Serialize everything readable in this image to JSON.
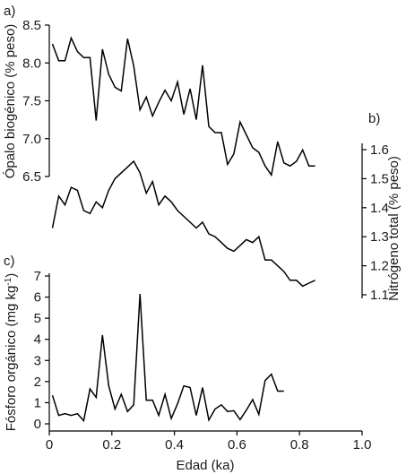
{
  "chart_data": [
    {
      "type": "line",
      "panel_label": "a)",
      "ylabel": "Ópalo biogénico (% peso)",
      "y_axis_side": "left",
      "ylim": [
        6.2,
        8.5
      ],
      "yticks": [
        "6.5",
        "7.0",
        "7.5",
        "8.0",
        "8.5"
      ],
      "ytick_values": [
        6.5,
        7.0,
        7.5,
        8.0,
        8.5
      ],
      "series": [
        {
          "x": [
            0.01,
            0.03,
            0.05,
            0.07,
            0.09,
            0.11,
            0.13,
            0.15,
            0.17,
            0.19,
            0.21,
            0.23,
            0.25,
            0.27,
            0.29,
            0.31,
            0.33,
            0.35,
            0.37,
            0.39,
            0.41,
            0.43,
            0.45,
            0.47,
            0.49,
            0.51,
            0.53,
            0.55,
            0.57,
            0.59,
            0.61,
            0.63,
            0.65,
            0.67,
            0.69,
            0.71,
            0.73,
            0.75,
            0.77,
            0.79,
            0.81,
            0.83,
            0.85
          ],
          "y": [
            8.25,
            8.03,
            8.03,
            8.33,
            8.15,
            8.07,
            8.07,
            7.24,
            8.18,
            7.85,
            7.68,
            7.63,
            8.32,
            7.96,
            7.38,
            7.55,
            7.3,
            7.48,
            7.64,
            7.5,
            7.75,
            7.32,
            7.66,
            7.25,
            7.97,
            7.16,
            7.08,
            7.08,
            6.66,
            6.8,
            7.22,
            7.05,
            6.88,
            6.82,
            6.64,
            6.52,
            6.96,
            6.68,
            6.64,
            6.7,
            6.85,
            6.64,
            6.64
          ]
        }
      ]
    },
    {
      "type": "line",
      "panel_label": "b)",
      "ylabel": "Nitrógeno total (% peso)",
      "y_axis_side": "right",
      "ylim": [
        1.07,
        1.67
      ],
      "yticks": [
        "1.1",
        "1.2",
        "1.3",
        "1.4",
        "1.5",
        "1.6"
      ],
      "ytick_values": [
        1.1,
        1.2,
        1.3,
        1.4,
        1.5,
        1.6
      ],
      "series": [
        {
          "x": [
            0.01,
            0.03,
            0.05,
            0.07,
            0.09,
            0.11,
            0.13,
            0.15,
            0.17,
            0.19,
            0.21,
            0.23,
            0.25,
            0.27,
            0.29,
            0.31,
            0.33,
            0.35,
            0.37,
            0.39,
            0.41,
            0.43,
            0.45,
            0.47,
            0.49,
            0.51,
            0.53,
            0.55,
            0.57,
            0.59,
            0.61,
            0.63,
            0.65,
            0.67,
            0.69,
            0.71,
            0.73,
            0.75,
            0.77,
            0.79,
            0.81,
            0.83,
            0.85
          ],
          "y": [
            1.33,
            1.44,
            1.41,
            1.47,
            1.46,
            1.39,
            1.38,
            1.42,
            1.4,
            1.46,
            1.5,
            1.52,
            1.54,
            1.56,
            1.52,
            1.45,
            1.49,
            1.41,
            1.44,
            1.42,
            1.39,
            1.37,
            1.35,
            1.33,
            1.35,
            1.31,
            1.3,
            1.28,
            1.26,
            1.25,
            1.27,
            1.29,
            1.28,
            1.3,
            1.22,
            1.22,
            1.2,
            1.18,
            1.15,
            1.15,
            1.13,
            1.14,
            1.15
          ]
        }
      ]
    },
    {
      "type": "line",
      "panel_label": "c)",
      "ylabel": "Fósforo orgánico (mg kg⁻¹)",
      "y_axis_side": "left",
      "ylim": [
        0,
        7.2
      ],
      "yticks": [
        "0",
        "1",
        "2",
        "3",
        "4",
        "5",
        "6",
        "7"
      ],
      "ytick_values": [
        0,
        1,
        2,
        3,
        4,
        5,
        6,
        7
      ],
      "xlabel": "Edad (ka)",
      "xlim": [
        0,
        1.0
      ],
      "xticks": [
        "0",
        "0.2",
        "0.4",
        "0.6",
        "0.8",
        "1.0"
      ],
      "xtick_values": [
        0,
        0.2,
        0.4,
        0.6,
        0.8,
        1.0
      ],
      "series": [
        {
          "x": [
            0.01,
            0.03,
            0.05,
            0.07,
            0.09,
            0.11,
            0.13,
            0.15,
            0.17,
            0.19,
            0.21,
            0.23,
            0.25,
            0.27,
            0.29,
            0.31,
            0.33,
            0.35,
            0.37,
            0.39,
            0.41,
            0.43,
            0.45,
            0.47,
            0.49,
            0.51,
            0.53,
            0.55,
            0.57,
            0.59,
            0.61,
            0.63,
            0.65,
            0.67,
            0.69,
            0.71,
            0.73,
            0.75
          ],
          "y": [
            1.35,
            0.4,
            0.48,
            0.4,
            0.48,
            0.15,
            1.65,
            1.25,
            4.2,
            1.8,
            0.7,
            1.4,
            0.58,
            0.9,
            6.15,
            1.12,
            1.12,
            0.4,
            1.4,
            0.25,
            0.95,
            1.8,
            1.72,
            0.4,
            1.72,
            0.18,
            0.7,
            0.9,
            0.58,
            0.62,
            0.2,
            0.65,
            1.15,
            0.45,
            2.05,
            2.35,
            1.55,
            1.55
          ]
        }
      ]
    }
  ]
}
